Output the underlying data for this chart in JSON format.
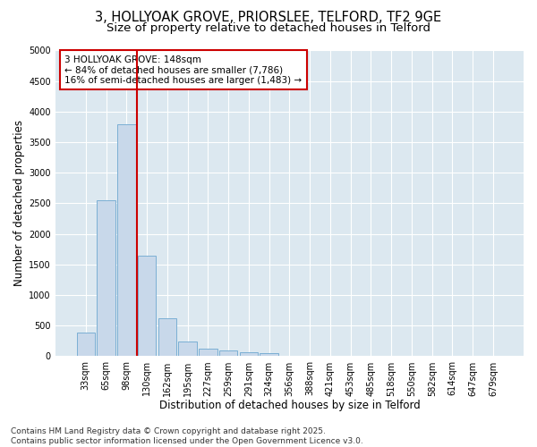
{
  "title_line1": "3, HOLLYOAK GROVE, PRIORSLEE, TELFORD, TF2 9GE",
  "title_line2": "Size of property relative to detached houses in Telford",
  "xlabel": "Distribution of detached houses by size in Telford",
  "ylabel": "Number of detached properties",
  "footer_line1": "Contains HM Land Registry data © Crown copyright and database right 2025.",
  "footer_line2": "Contains public sector information licensed under the Open Government Licence v3.0.",
  "annotation_line1": "3 HOLLYOAK GROVE: 148sqm",
  "annotation_line2": "← 84% of detached houses are smaller (7,786)",
  "annotation_line3": "16% of semi-detached houses are larger (1,483) →",
  "bar_labels": [
    "33sqm",
    "65sqm",
    "98sqm",
    "130sqm",
    "162sqm",
    "195sqm",
    "227sqm",
    "259sqm",
    "291sqm",
    "324sqm",
    "356sqm",
    "388sqm",
    "421sqm",
    "453sqm",
    "485sqm",
    "518sqm",
    "550sqm",
    "582sqm",
    "614sqm",
    "647sqm",
    "679sqm"
  ],
  "bar_values": [
    380,
    2550,
    3800,
    1650,
    620,
    240,
    120,
    100,
    60,
    50,
    0,
    0,
    0,
    0,
    0,
    0,
    0,
    0,
    0,
    0,
    0
  ],
  "bar_color": "#c8d8ea",
  "bar_edge_color": "#7bafd4",
  "vline_x_index": 3,
  "vline_color": "#cc0000",
  "ylim": [
    0,
    5000
  ],
  "yticks": [
    0,
    500,
    1000,
    1500,
    2000,
    2500,
    3000,
    3500,
    4000,
    4500,
    5000
  ],
  "plot_bg_color": "#dce8f0",
  "figure_bg_color": "#ffffff",
  "annotation_box_bg": "#ffffff",
  "annotation_box_edge": "#cc0000",
  "grid_color": "#ffffff",
  "title_fontsize": 10.5,
  "subtitle_fontsize": 9.5,
  "axis_label_fontsize": 8.5,
  "tick_fontsize": 7,
  "annotation_fontsize": 7.5,
  "footer_fontsize": 6.5
}
